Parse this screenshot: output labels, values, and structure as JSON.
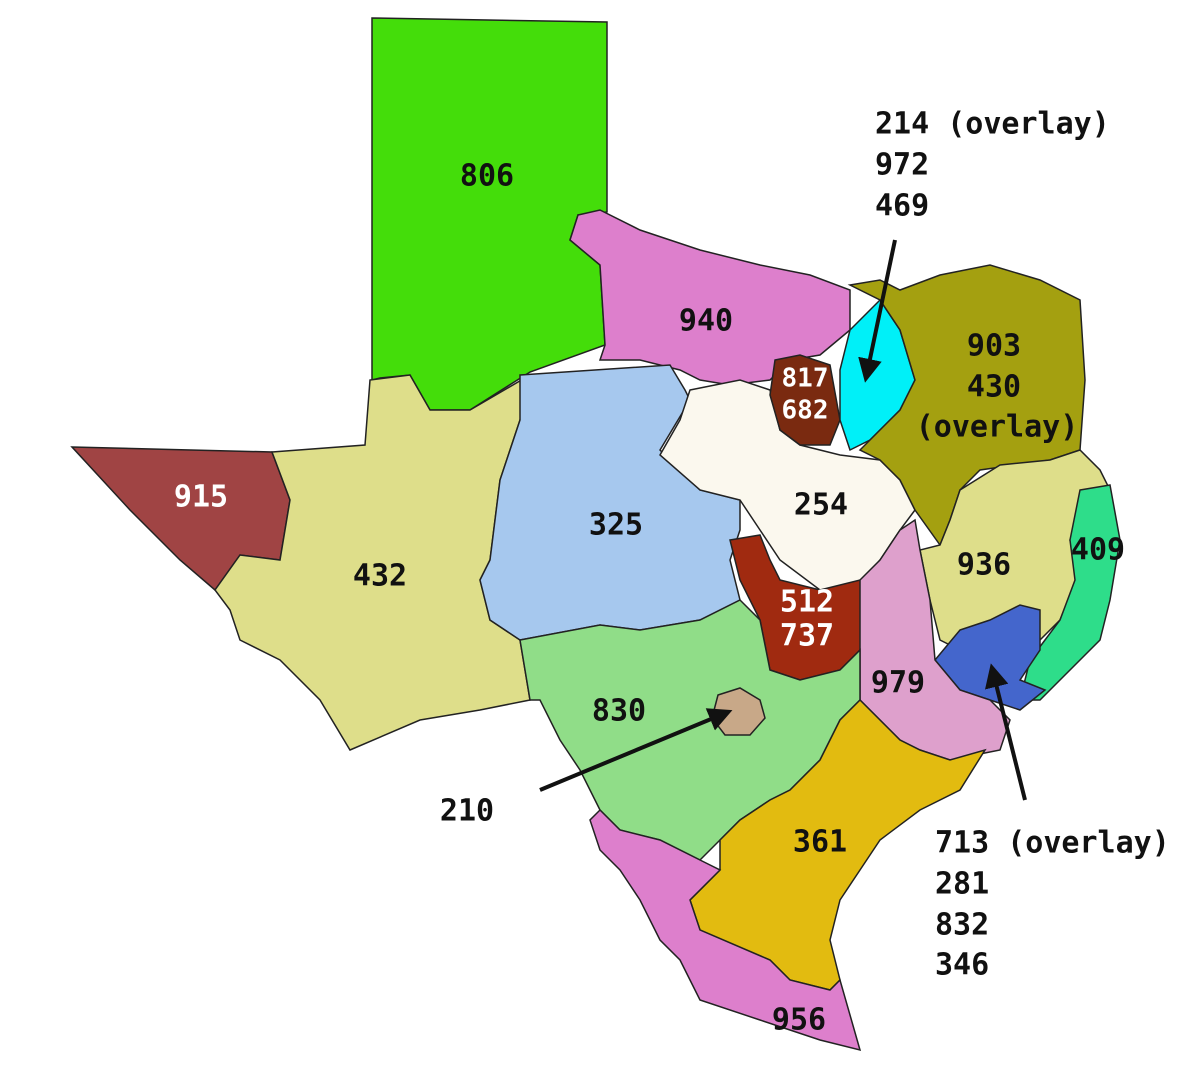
{
  "regions": [
    {
      "lines": [
        "806"
      ]
    },
    {
      "lines": [
        "940"
      ]
    },
    {
      "lines": [
        "915"
      ]
    },
    {
      "lines": [
        "432"
      ]
    },
    {
      "lines": [
        "325"
      ]
    },
    {
      "lines": [
        "254"
      ]
    },
    {
      "lines": [
        "817",
        "682"
      ]
    },
    {
      "lines": [
        "903",
        "430",
        "(overlay)"
      ]
    },
    {
      "lines": [
        "936"
      ]
    },
    {
      "lines": [
        "409"
      ]
    },
    {
      "lines": [
        "512",
        "737"
      ]
    },
    {
      "lines": [
        "979"
      ]
    },
    {
      "lines": [
        "830"
      ]
    },
    {
      "lines": [
        "361"
      ]
    },
    {
      "lines": [
        "956"
      ]
    }
  ],
  "callouts": [
    {
      "lines": [
        "214 (overlay)",
        "972",
        "469"
      ]
    },
    {
      "lines": [
        "210"
      ]
    },
    {
      "lines": [
        "713 (overlay)",
        "281",
        "832",
        "346"
      ]
    }
  ]
}
